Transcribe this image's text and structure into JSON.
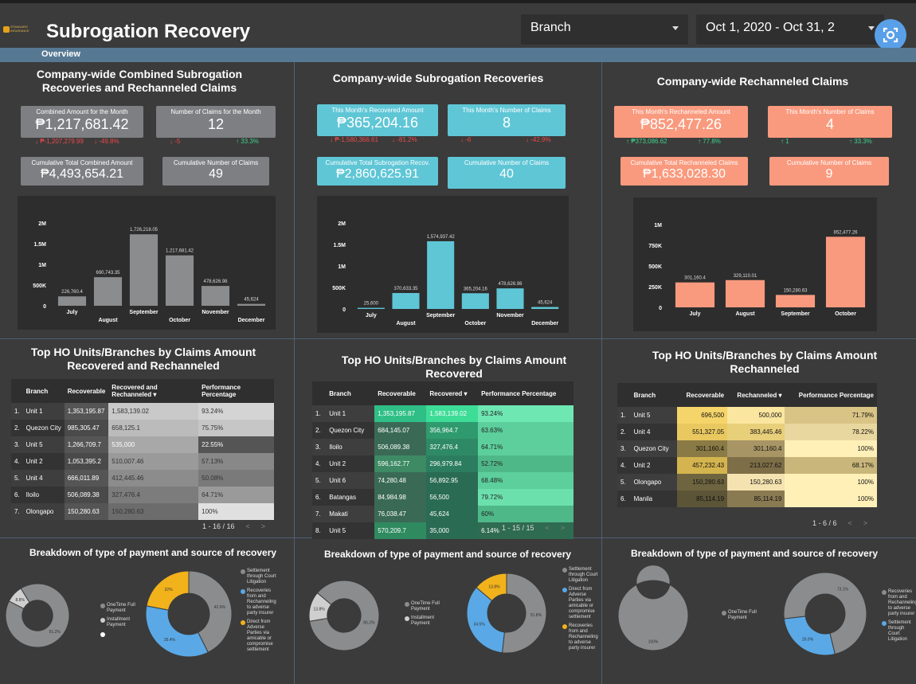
{
  "header": {
    "title": "Subrogation Recovery",
    "logo_text": "STANDARD INSURANCE",
    "branch_label": "Branch",
    "date_label": "Oct 1, 2020 - Oct 31, 2",
    "tab": "Overview"
  },
  "colors": {
    "gray": "#8a8c8e",
    "cyan": "#5fc6d6",
    "salmon": "#f99a7e",
    "bg": "#3b3b3b"
  },
  "panels": [
    {
      "title": "Company-wide Combined  Subrogation Recoveries and Rechanneled Claims",
      "kpis": [
        {
          "label": "Combined Amount for the Month",
          "value": "₱1,217,681.42"
        },
        {
          "label": "Number of Claims for the Month",
          "value": "12"
        },
        {
          "label": "Cumulative Total Combined Amount",
          "value": "₱4,493,654.21"
        },
        {
          "label": "Cumulative Number of Claims",
          "value": "49"
        }
      ],
      "deltas": [
        {
          "text": "↓ ₱-1,207,279.99",
          "dir": "down"
        },
        {
          "text": "↓ -49.8%",
          "dir": "down"
        },
        {
          "text": "↓ -5",
          "dir": "down"
        },
        {
          "text": "↑ 33.3%",
          "dir": "up"
        }
      ]
    },
    {
      "title": "Company-wide Subrogation Recoveries",
      "kpis": [
        {
          "label": "This Month's Recovered Amount",
          "value": "₱365,204.16"
        },
        {
          "label": "This Month's Number of Claims",
          "value": "8"
        },
        {
          "label": "Cumulative Total Subrogation Recov.",
          "value": "₱2,860,625.91"
        },
        {
          "label": "Cumulative Number of Claims",
          "value": "40"
        }
      ],
      "deltas": [
        {
          "text": "↓ ₱-1,580,366.61",
          "dir": "down"
        },
        {
          "text": "↓ -81.2%",
          "dir": "down"
        },
        {
          "text": "↓ -6",
          "dir": "down"
        },
        {
          "text": "↓ -42.9%",
          "dir": "down"
        }
      ]
    },
    {
      "title": "Company-wide Rechanneled Claims",
      "kpis": [
        {
          "label": "This Month's Rechanneled Amount",
          "value": "₱852,477.26"
        },
        {
          "label": "This Month's Number of Claims",
          "value": "4"
        },
        {
          "label": "Cumulative Total Rechanneled Claims",
          "value": "₱1,633,028.30"
        },
        {
          "label": "Cumulative Number of Claims",
          "value": "9"
        }
      ],
      "deltas": [
        {
          "text": "↑ ₱373,086.62",
          "dir": "up"
        },
        {
          "text": "↑ 77.8%",
          "dir": "up"
        },
        {
          "text": "↑ 1",
          "dir": "up"
        },
        {
          "text": "↑ 33.3%",
          "dir": "up"
        }
      ]
    }
  ],
  "chart_data": [
    {
      "type": "bar",
      "categories": [
        "July",
        "August",
        "September",
        "October",
        "November",
        "December"
      ],
      "values": [
        226760.4,
        690743.35,
        1726218.05,
        1217681.42,
        478626.98,
        45624
      ],
      "labels": [
        "226,760.4",
        "690,743.35",
        "1,726,218.05",
        "1,217,681.42",
        "478,626.98",
        "45,624"
      ],
      "ylim": [
        0,
        2000000
      ],
      "yticks": [
        "0",
        "500K",
        "1M",
        "1.5M",
        "2M"
      ],
      "color": "#8a8c8e"
    },
    {
      "type": "bar",
      "categories": [
        "July",
        "August",
        "September",
        "October",
        "November",
        "December"
      ],
      "values": [
        25600,
        370633.35,
        1574937.42,
        365204.16,
        478626.98,
        45624
      ],
      "labels": [
        "25,600",
        "370,633.35",
        "1,574,937.42",
        "365,204.16",
        "478,626.98",
        "45,624"
      ],
      "ylim": [
        0,
        2000000
      ],
      "yticks": [
        "0",
        "500K",
        "1M",
        "1.5M",
        "2M"
      ],
      "color": "#5fc6d6"
    },
    {
      "type": "bar",
      "categories": [
        "July",
        "August",
        "September",
        "October"
      ],
      "values": [
        301160.4,
        329110.01,
        150280.63,
        852477.26
      ],
      "labels": [
        "301,160.4",
        "329,110.01",
        "150,280.63",
        "852,477.26"
      ],
      "ylim": [
        0,
        1000000
      ],
      "yticks": [
        "0",
        "250K",
        "500K",
        "750K",
        "1M"
      ],
      "color": "#f99a7e"
    },
    {
      "type": "pie",
      "title": "Breakdown of type of payment  and source of recovery",
      "slices": [
        {
          "name": "OneTime Full Payment",
          "value": 91.2,
          "label": "91.2%",
          "color": "#8a8c8e"
        },
        {
          "name": "Installment Payment",
          "value": 8.8,
          "label": "8.8%",
          "color": "#cfcfcf"
        }
      ],
      "extra_legend": [
        ""
      ]
    },
    {
      "type": "pie",
      "slices": [
        {
          "name": "Settlement through Court Litigation",
          "value": 42.6,
          "label": "42.6%",
          "color": "#8a8c8e"
        },
        {
          "name": "Recoveries from and Rechanneling to adverse party insurer",
          "value": 35.4,
          "label": "35.4%",
          "color": "#5aa9e6"
        },
        {
          "name": "Direct from Adverse Parties via amicable or compromise settlement",
          "value": 22,
          "label": "22%",
          "color": "#f2b21b"
        }
      ]
    },
    {
      "type": "pie",
      "title": "Breakdown of type of payment and source of recovery",
      "slices": [
        {
          "name": "OneTime Full Payment",
          "value": 86.2,
          "label": "86.2%",
          "color": "#8a8c8e"
        },
        {
          "name": "Installment Payment",
          "value": 13.8,
          "label": "13.8%",
          "color": "#cfcfcf"
        }
      ]
    },
    {
      "type": "pie",
      "slices": [
        {
          "name": "Settlement through Court Litigation",
          "value": 51.8,
          "label": "51.8%",
          "color": "#8a8c8e"
        },
        {
          "name": "Direct from Adverse Parties via amicable or compromise settlement",
          "value": 34.5,
          "label": "34.5%",
          "color": "#5aa9e6"
        },
        {
          "name": "Recoveries from and Rechanneling to adverse party insurer",
          "value": 13.8,
          "label": "13.8%",
          "color": "#f2b21b"
        }
      ]
    },
    {
      "type": "pie",
      "title": "Breakdown of type of payment and source of recovery",
      "slices": [
        {
          "name": "OneTime Full Payment",
          "value": 100,
          "label": "100%",
          "color": "#8a8c8e"
        }
      ]
    },
    {
      "type": "pie",
      "slices": [
        {
          "name": "Recoveries from and Rechanneling to adverse party insurer",
          "value": 73.1,
          "label": "73.1%",
          "color": "#8a8c8e"
        },
        {
          "name": "Settlement through Court Litigation",
          "value": 26.9,
          "label": "26.9%",
          "color": "#5aa9e6"
        }
      ]
    }
  ],
  "tables": [
    {
      "title": "Top  HO Units/Branches by  Claims Amount Recovered and Rechanneled",
      "headers": [
        "",
        "Branch",
        "Recoverable",
        "Recovered and Rechanneled ▾",
        "Performance Percentage"
      ],
      "rows": [
        [
          "1.",
          "Unit 1",
          "1,353,195.87",
          "1,583,139.02",
          "93.24%"
        ],
        [
          "2.",
          "Quezon City",
          "985,305.47",
          "658,125.1",
          "75.75%"
        ],
        [
          "3.",
          "Unit 5",
          "1,266,709.7",
          "535,000",
          "22.55%"
        ],
        [
          "4.",
          "Unit 2",
          "1,053,395.2",
          "510,007.46",
          "57.13%"
        ],
        [
          "5.",
          "Unit 4",
          "666,011.89",
          "412,445.46",
          "50.08%"
        ],
        [
          "6.",
          "Iloilo",
          "506,089.38",
          "327,476.4",
          "64.71%"
        ],
        [
          "7.",
          "Olongapo",
          "150,280.63",
          "150,280.63",
          "100%"
        ]
      ],
      "pager": "1 - 16 / 16"
    },
    {
      "title": "Top HO Units/Branches by Claims Amount Recovered",
      "headers": [
        "",
        "Branch",
        "Recoverable",
        "Recovered ▾",
        "Performance Percentage"
      ],
      "rows": [
        [
          "1.",
          "Unit 1",
          "1,353,195.87",
          "1,583,139.02",
          "93.24%"
        ],
        [
          "2.",
          "Quezon City",
          "684,145.07",
          "356,964.7",
          "63.63%"
        ],
        [
          "3.",
          "Iloilo",
          "506,089.38",
          "327,476.4",
          "64.71%"
        ],
        [
          "4.",
          "Unit 2",
          "596,162.77",
          "296,979.84",
          "52.72%"
        ],
        [
          "5.",
          "Unit 6",
          "74,280.48",
          "56,892.95",
          "68.48%"
        ],
        [
          "6.",
          "Batangas",
          "84,984.98",
          "56,500",
          "79.72%"
        ],
        [
          "7.",
          "Makati",
          "76,038.47",
          "45,624",
          "60%"
        ],
        [
          "8.",
          "Unit 5",
          "570,209.7",
          "35,000",
          "6.14%"
        ]
      ],
      "pager": "1 - 15 / 15"
    },
    {
      "title": "Top HO Units/Branches by Claims Amount Rechanneled",
      "headers": [
        "",
        "Branch",
        "Recoverable",
        "Rechanneled ▾",
        "Performance Percentage"
      ],
      "rows": [
        [
          "1.",
          "Unit 5",
          "696,500",
          "500,000",
          "71.79%"
        ],
        [
          "2.",
          "Unit 4",
          "551,327.05",
          "383,445.46",
          "78.22%"
        ],
        [
          "3.",
          "Quezon City",
          "301,160.4",
          "301,160.4",
          "100%"
        ],
        [
          "4.",
          "Unit 2",
          "457,232.43",
          "213,027.62",
          "68.17%"
        ],
        [
          "5.",
          "Olongapo",
          "150,280.63",
          "150,280.63",
          "100%"
        ],
        [
          "6.",
          "Manila",
          "85,114.19",
          "85,114.19",
          "100%"
        ]
      ],
      "pager": "1 - 6 / 6"
    }
  ],
  "icons": {
    "lens": "google-lens-icon",
    "prev": "chevron-left-icon",
    "next": "chevron-right-icon",
    "caret": "caret-down-icon"
  }
}
